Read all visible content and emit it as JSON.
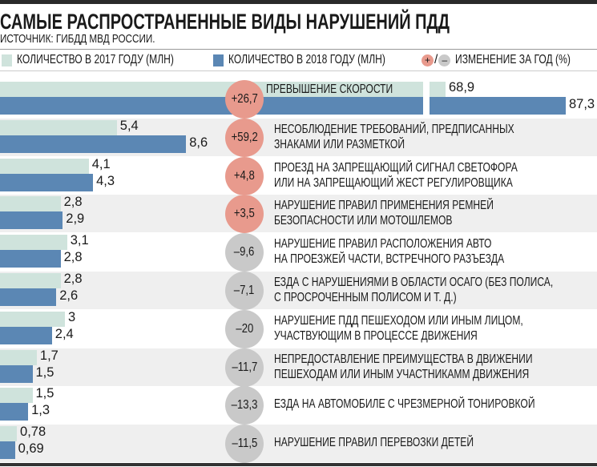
{
  "title": "САМЫЕ РАСПРОСТРАНЕННЫЕ ВИДЫ НАРУШЕНИЙ ПДД",
  "source": "ИСТОЧНИК: ГИБДД МВД РОССИИ.",
  "legend": {
    "s2017": "КОЛИЧЕСТВО В 2017 ГОДУ (МЛН)",
    "s2018": "КОЛИЧЕСТВО В 2018 ГОДУ (МЛН)",
    "plus": "+",
    "slash": "/",
    "minus": "–",
    "change": "ИЗМЕНЕНИЕ ЗА ГОД (%)"
  },
  "colors": {
    "s2017": "#cfe3dc",
    "s2018": "#5b87b4",
    "positive": "#e89a8d",
    "negative": "#c9c9c9",
    "row_alt": "#efefef"
  },
  "chart_data": {
    "type": "bar",
    "orientation": "horizontal",
    "axis_break": "first category bars truncated",
    "series": [
      {
        "name": "КОЛИЧЕСТВО В 2017 ГОДУ (МЛН)",
        "values": [
          68.9,
          5.4,
          4.1,
          2.8,
          3.1,
          2.8,
          3,
          1.7,
          1.5,
          0.78
        ]
      },
      {
        "name": "КОЛИЧЕСТВО В 2018 ГОДУ (МЛН)",
        "values": [
          87.3,
          8.6,
          4.3,
          2.9,
          2.8,
          2.6,
          2.4,
          1.5,
          1.3,
          0.69
        ]
      }
    ],
    "rows": [
      {
        "label": [
          "ПРЕВЫШЕНИЕ СКОРОСТИ"
        ],
        "v2017": "68,9",
        "v2018": "87,3",
        "change": "+26,7",
        "positive": true
      },
      {
        "label": [
          "НЕСОБЛЮДЕНИЕ ТРЕБОВАНИЙ, ПРЕДПИСАННЫХ",
          "ЗНАКАМИ ИЛИ РАЗМЕТКОЙ"
        ],
        "v2017": "5,4",
        "v2018": "8,6",
        "change": "+59,2",
        "positive": true
      },
      {
        "label": [
          "ПРОЕЗД НА ЗАПРЕЩАЮЩИЙ СИГНАЛ СВЕТОФОРА",
          "ИЛИ НА ЗАПРЕЩАЮЩИЙ ЖЕСТ РЕГУЛИРОВЩИКА"
        ],
        "v2017": "4,1",
        "v2018": "4,3",
        "change": "+4,8",
        "positive": true
      },
      {
        "label": [
          "НАРУШЕНИЕ ПРАВИЛ ПРИМЕНЕНИЯ РЕМНЕЙ",
          "БЕЗОПАСНОСТИ ИЛИ МОТОШЛЕМОВ"
        ],
        "v2017": "2,8",
        "v2018": "2,9",
        "change": "+3,5",
        "positive": true
      },
      {
        "label": [
          "НАРУШЕНИЕ ПРАВИЛ РАСПОЛОЖЕНИЯ АВТО",
          "НА ПРОЕЗЖЕЙ ЧАСТИ, ВСТРЕЧНОГО РАЗЪЕЗДА"
        ],
        "v2017": "3,1",
        "v2018": "2,8",
        "change": "–9,6",
        "positive": false
      },
      {
        "label": [
          "ЕЗДА С НАРУШЕНИЯМИ В ОБЛАСТИ ОСАГО (БЕЗ ПОЛИСА,",
          "С ПРОСРОЧЕННЫМ ПОЛИСОМ И Т. Д.)"
        ],
        "v2017": "2,8",
        "v2018": "2,6",
        "change": "–7,1",
        "positive": false
      },
      {
        "label": [
          "НАРУШЕНИЕ ПДД ПЕШЕХОДОМ ИЛИ ИНЫМ ЛИЦОМ,",
          "УЧАСТВУЮЩИМ В ПРОЦЕССЕ ДВИЖЕНИЯ"
        ],
        "v2017": "3",
        "v2018": "2,4",
        "change": "–20",
        "positive": false
      },
      {
        "label": [
          "НЕПРЕДОСТАВЛЕНИЕ ПРЕИМУЩЕСТВА В ДВИЖЕНИИ",
          "ПЕШЕХОДАМ ИЛИ ИНЫМ УЧАСТНИКАММ ДВИЖЕНИЯ"
        ],
        "v2017": "1,7",
        "v2018": "1,5",
        "change": "–11,7",
        "positive": false
      },
      {
        "label": [
          "ЕЗДА НА АВТОМОБИЛЕ С ЧРЕЗМЕРНОЙ ТОНИРОВКОЙ"
        ],
        "v2017": "1,5",
        "v2018": "1,3",
        "change": "–13,3",
        "positive": false
      },
      {
        "label": [
          "НАРУШЕНИЕ ПРАВИЛ ПЕРЕВОЗКИ ДЕТЕЙ"
        ],
        "v2017": "0,78",
        "v2018": "0,69",
        "change": "–11,5",
        "positive": false
      }
    ]
  }
}
